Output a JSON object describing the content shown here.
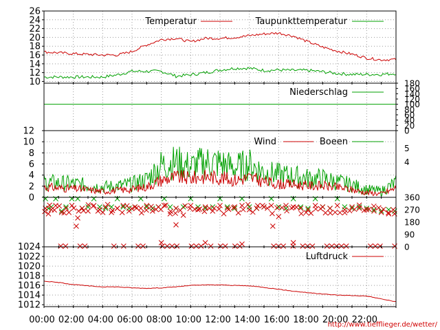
{
  "colors": {
    "red": "#cc0000",
    "green": "#00a000",
    "grid": "#999999"
  },
  "url": "http://www.tiefflieger.de/wetter/",
  "x_ticks": [
    "00:00",
    "02:00",
    "04:00",
    "06:00",
    "08:00",
    "10:00",
    "12:00",
    "14:00",
    "16:00",
    "18:00",
    "20:00",
    "22:00"
  ],
  "chart_data": [
    {
      "type": "line",
      "panel": "temperature",
      "x_hours": [
        0,
        2,
        4,
        5,
        6,
        7,
        8,
        9,
        10,
        11,
        12,
        13,
        14,
        15,
        16,
        17,
        18,
        19,
        20,
        21,
        22,
        23,
        24
      ],
      "series": [
        {
          "name": "Temperatur",
          "values": [
            16.7,
            16.3,
            16.0,
            16.0,
            16.8,
            18.3,
            19.5,
            19.8,
            19.0,
            19.8,
            19.8,
            20.0,
            20.4,
            20.8,
            21.0,
            20.3,
            19.0,
            17.8,
            16.9,
            16.2,
            15.3,
            14.9,
            15.0
          ]
        },
        {
          "name": "Taupunkttemperatur",
          "values": [
            11.0,
            11.0,
            11.0,
            11.5,
            12.3,
            12.3,
            12.3,
            11.2,
            11.5,
            12.0,
            12.6,
            13.0,
            13.0,
            12.5,
            12.6,
            12.5,
            12.5,
            12.2,
            11.8,
            11.6,
            11.6,
            11.6,
            11.8
          ]
        }
      ],
      "y_ticks": [
        10,
        12,
        14,
        16,
        18,
        20,
        22,
        24,
        26
      ],
      "ylim": [
        9.6,
        26
      ]
    },
    {
      "type": "line",
      "panel": "precipitation",
      "series": [
        {
          "name": "Niederschlag",
          "values": [
            100,
            100
          ]
        }
      ],
      "y_ticks": [
        0,
        20,
        40,
        60,
        80,
        100,
        120,
        140,
        160,
        180
      ],
      "ylim": [
        0,
        180
      ]
    },
    {
      "type": "line",
      "panel": "wind",
      "x_hours": [
        0,
        1,
        2,
        3,
        4,
        5,
        6,
        7,
        8,
        9,
        10,
        11,
        12,
        13,
        14,
        15,
        16,
        17,
        18,
        19,
        20,
        21,
        22,
        23,
        24
      ],
      "series": [
        {
          "name": "Wind",
          "values": [
            1.8,
            1.6,
            1.5,
            1.3,
            1.0,
            1.2,
            1.4,
            1.8,
            3.0,
            3.5,
            3.3,
            3.6,
            3.4,
            3.0,
            3.4,
            2.7,
            2.3,
            2.2,
            2.0,
            2.0,
            1.7,
            1.3,
            0.8,
            0.6,
            1.6
          ]
        },
        {
          "name": "Boeen",
          "values": [
            2.6,
            2.4,
            2.3,
            2.0,
            1.7,
            1.9,
            2.2,
            3.0,
            5.5,
            6.0,
            5.2,
            6.0,
            5.8,
            5.0,
            5.6,
            4.3,
            3.8,
            3.6,
            3.2,
            3.2,
            2.6,
            2.1,
            1.3,
            1.0,
            2.5
          ]
        }
      ],
      "y_ticks": [
        0,
        2,
        4,
        6,
        8,
        10,
        12
      ],
      "y_right_ticks": [
        4,
        5
      ],
      "ylim": [
        0,
        12
      ]
    },
    {
      "type": "scatter",
      "panel": "wind-direction",
      "x_hours": [
        0.1,
        0.3,
        0.5,
        0.8,
        1.2,
        1.5,
        1.9,
        2.3,
        2.6,
        3.0,
        3.4,
        3.8,
        4.2,
        4.6,
        5.0,
        5.4,
        5.8,
        6.2,
        6.6,
        7.0,
        7.4,
        7.8,
        8.2,
        8.6,
        9.0,
        9.5,
        10.0,
        10.5,
        11.0,
        11.5,
        12.0,
        12.5,
        13.0,
        13.5,
        14.0,
        14.5,
        15.0,
        15.5,
        16.0,
        16.5,
        17.0,
        17.5,
        18.0,
        18.5,
        19.0,
        19.5,
        20.0,
        20.5,
        21.0,
        21.5,
        22.0,
        22.5,
        23.0,
        23.5,
        23.9
      ],
      "series": [
        {
          "name": "Wind",
          "values": [
            280,
            240,
            270,
            300,
            250,
            280,
            300,
            210,
            280,
            260,
            300,
            270,
            290,
            250,
            280,
            300,
            260,
            290,
            280,
            300,
            260,
            290,
            300,
            240,
            280,
            230,
            300,
            270,
            290,
            260,
            300,
            280,
            290,
            300,
            270,
            280,
            290,
            300,
            220,
            300,
            290,
            280,
            270,
            300,
            290,
            280,
            300,
            270,
            290,
            280,
            270,
            260,
            250,
            240,
            240
          ]
        },
        {
          "name": "Boeen",
          "values": [
            360,
            290,
            300,
            360,
            270,
            300,
            360,
            360,
            290,
            300,
            360,
            300,
            290,
            300,
            360,
            300,
            290,
            300,
            360,
            300,
            290,
            300,
            360,
            300,
            290,
            300,
            360,
            300,
            290,
            300,
            360,
            300,
            290,
            360,
            300,
            290,
            300,
            360,
            300,
            290,
            360,
            300,
            290,
            360,
            300,
            290,
            360,
            300,
            290,
            300,
            290,
            280,
            270,
            280,
            270
          ]
        }
      ],
      "y_right_ticks": [
        0,
        90,
        180,
        270,
        360
      ],
      "ylim": [
        0,
        360
      ]
    },
    {
      "type": "line",
      "panel": "pressure",
      "x_hours": [
        0,
        1,
        2,
        3,
        4,
        5,
        6,
        7,
        8,
        9,
        10,
        11,
        12,
        13,
        14,
        15,
        16,
        17,
        18,
        19,
        20,
        21,
        22,
        23,
        24
      ],
      "series": [
        {
          "name": "Luftdruck",
          "values": [
            1016.9,
            1016.6,
            1016.2,
            1015.9,
            1015.7,
            1015.7,
            1015.5,
            1015.4,
            1015.5,
            1015.7,
            1016.0,
            1016.1,
            1016.1,
            1016.0,
            1015.9,
            1015.6,
            1015.2,
            1014.8,
            1014.5,
            1014.2,
            1014.0,
            1013.9,
            1013.8,
            1013.2,
            1012.6
          ]
        }
      ],
      "y_ticks": [
        1012,
        1014,
        1016,
        1018,
        1020,
        1022,
        1024
      ],
      "ylim": [
        1011.6,
        1024
      ]
    }
  ]
}
